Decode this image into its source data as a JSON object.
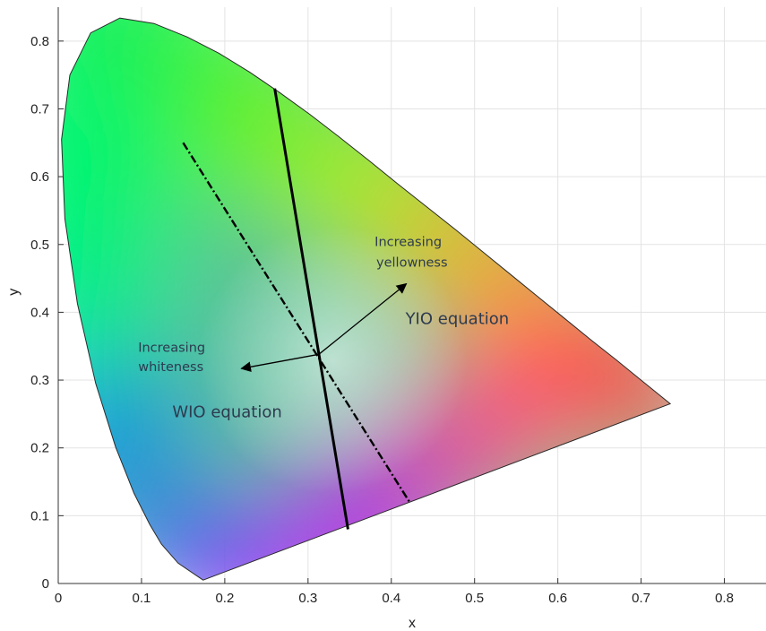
{
  "chart_data": {
    "type": "line",
    "title": "",
    "xlabel": "x",
    "ylabel": "y",
    "xlim": [
      0,
      0.85
    ],
    "ylim": [
      0,
      0.85
    ],
    "xticks": [
      0,
      0.1,
      0.2,
      0.3,
      0.4,
      0.5,
      0.6,
      0.7,
      0.8
    ],
    "yticks": [
      0,
      0.1,
      0.2,
      0.3,
      0.4,
      0.5,
      0.6,
      0.7,
      0.8
    ],
    "xtick_labels": [
      "0",
      "0.1",
      "0.2",
      "0.3",
      "0.4",
      "0.5",
      "0.6",
      "0.7",
      "0.8"
    ],
    "ytick_labels": [
      "0",
      "0.1",
      "0.2",
      "0.3",
      "0.4",
      "0.5",
      "0.6",
      "0.7",
      "0.8"
    ],
    "grid": true,
    "background": "CIE 1931 chromaticity diagram (spectral locus filled with colours)",
    "spectral_locus": [
      [
        0.174,
        0.005
      ],
      [
        0.144,
        0.03
      ],
      [
        0.124,
        0.058
      ],
      [
        0.11,
        0.087
      ],
      [
        0.091,
        0.133
      ],
      [
        0.069,
        0.201
      ],
      [
        0.045,
        0.295
      ],
      [
        0.023,
        0.413
      ],
      [
        0.008,
        0.538
      ],
      [
        0.004,
        0.655
      ],
      [
        0.014,
        0.75
      ],
      [
        0.039,
        0.812
      ],
      [
        0.074,
        0.834
      ],
      [
        0.115,
        0.826
      ],
      [
        0.155,
        0.806
      ],
      [
        0.193,
        0.782
      ],
      [
        0.23,
        0.754
      ],
      [
        0.266,
        0.724
      ],
      [
        0.302,
        0.692
      ],
      [
        0.337,
        0.659
      ],
      [
        0.373,
        0.624
      ],
      [
        0.408,
        0.589
      ],
      [
        0.444,
        0.554
      ],
      [
        0.479,
        0.52
      ],
      [
        0.512,
        0.487
      ],
      [
        0.544,
        0.455
      ],
      [
        0.575,
        0.424
      ],
      [
        0.608,
        0.391
      ],
      [
        0.64,
        0.359
      ],
      [
        0.67,
        0.33
      ],
      [
        0.7,
        0.3
      ],
      [
        0.735,
        0.265
      ]
    ],
    "series": [
      {
        "style": "solid",
        "color": "#000000",
        "x": [
          0.26,
          0.348
        ],
        "y": [
          0.73,
          0.08
        ]
      },
      {
        "style": "dash-dot",
        "color": "#000000",
        "x": [
          0.15,
          0.423
        ],
        "y": [
          0.65,
          0.118
        ]
      }
    ],
    "white_point": [
      0.313,
      0.338
    ],
    "arrows": [
      {
        "from": [
          0.313,
          0.338
        ],
        "to": [
          0.22,
          0.317
        ]
      },
      {
        "from": [
          0.313,
          0.338
        ],
        "to": [
          0.418,
          0.442
        ]
      }
    ],
    "annotations": [
      {
        "id": "inc_yellow_1",
        "text": "Increasing",
        "x": 0.38,
        "y": 0.498
      },
      {
        "id": "inc_yellow_2",
        "text": "yellowness",
        "x": 0.382,
        "y": 0.467
      },
      {
        "id": "yio",
        "text": "YIO equation",
        "x": 0.417,
        "y": 0.383
      },
      {
        "id": "inc_white_1",
        "text": "Increasing",
        "x": 0.096,
        "y": 0.342
      },
      {
        "id": "inc_white_2",
        "text": "whiteness",
        "x": 0.096,
        "y": 0.313
      },
      {
        "id": "wio",
        "text": "WIO equation",
        "x": 0.137,
        "y": 0.245
      }
    ]
  }
}
